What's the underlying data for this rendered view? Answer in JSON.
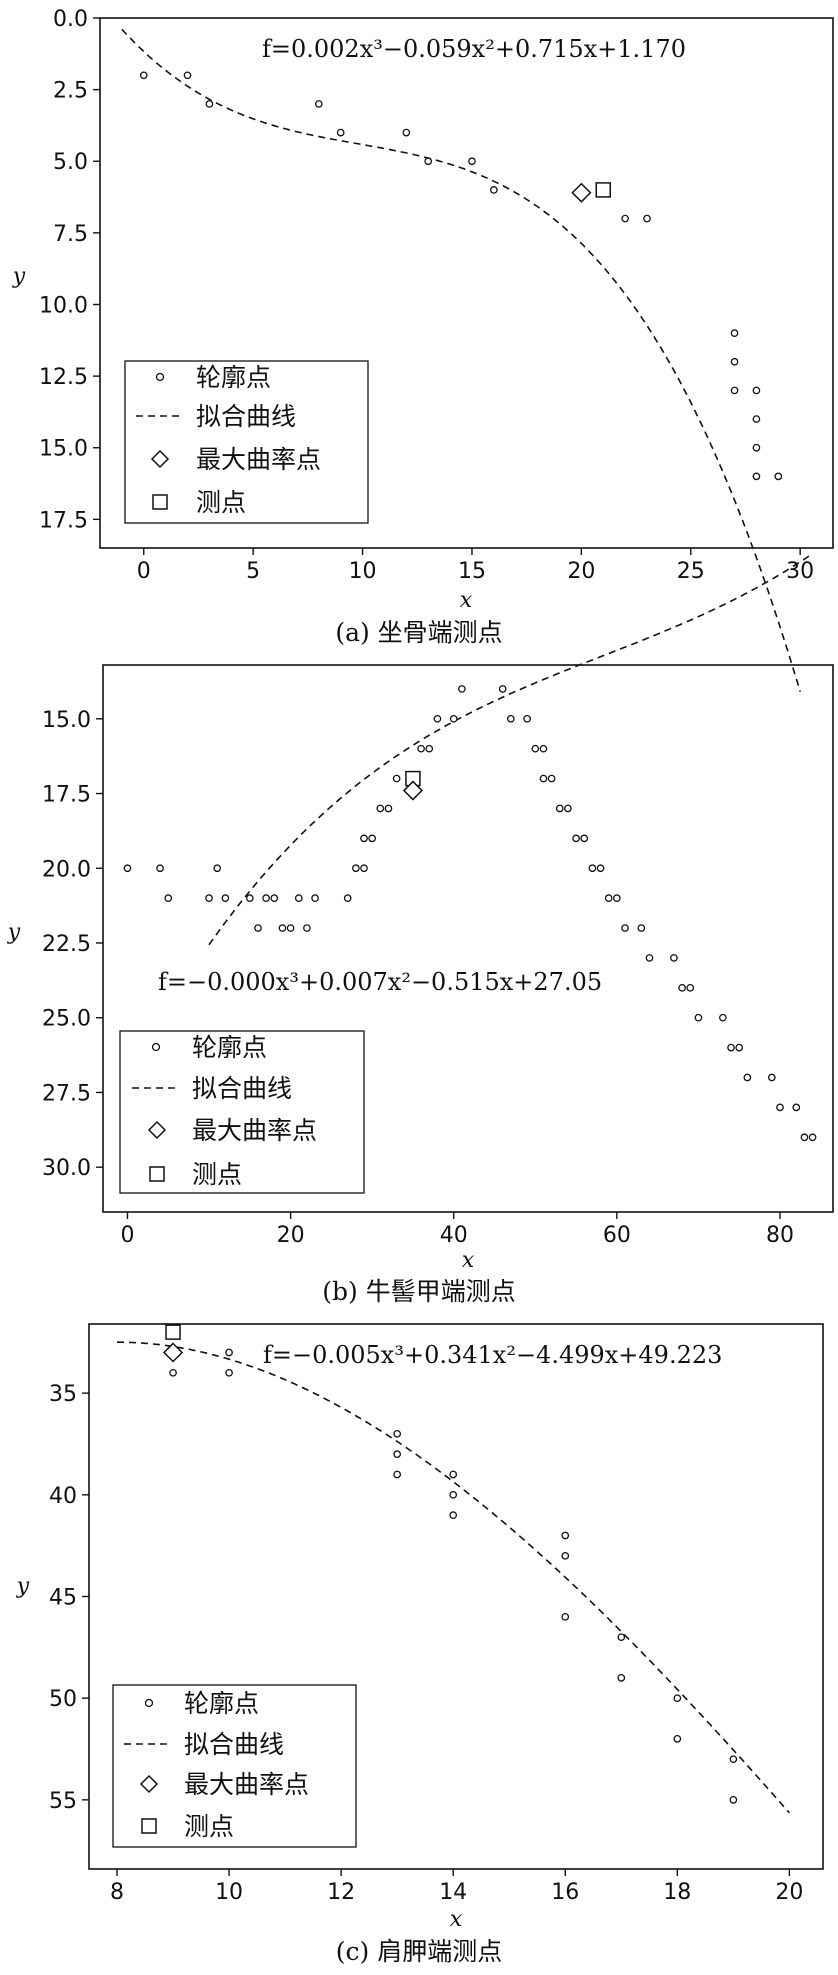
{
  "chart_data": [
    {
      "type": "scatter",
      "caption": "(a) 坐骨端测点",
      "equation": "f=0.002x³−0.059x²+0.715x+1.170",
      "xlabel": "x",
      "ylabel": "y",
      "xlim": [
        -2,
        31.5
      ],
      "ylim": [
        0,
        18.5
      ],
      "y_inverted": true,
      "xticks": [
        0,
        5,
        10,
        15,
        20,
        25,
        30
      ],
      "yticks": [
        "0.0",
        "2.5",
        "5.0",
        "7.5",
        "10.0",
        "12.5",
        "15.0",
        "17.5"
      ],
      "legend_position": "bottom-left",
      "legend": [
        "轮廓点",
        "拟合曲线",
        "最大曲率点",
        "测点"
      ],
      "contour_points": [
        [
          0,
          2
        ],
        [
          2,
          2
        ],
        [
          3,
          3
        ],
        [
          8,
          3
        ],
        [
          9,
          4
        ],
        [
          12,
          4
        ],
        [
          13,
          5
        ],
        [
          15,
          5
        ],
        [
          16,
          6
        ],
        [
          22,
          7
        ],
        [
          23,
          7
        ],
        [
          27,
          11
        ],
        [
          27,
          12
        ],
        [
          27,
          13
        ],
        [
          28,
          13
        ],
        [
          28,
          14
        ],
        [
          28,
          15
        ],
        [
          28,
          16
        ],
        [
          29,
          16
        ]
      ],
      "fit": {
        "coeffs": [
          0.002,
          -0.059,
          0.715,
          1.17
        ],
        "x_range": [
          -1,
          30
        ]
      },
      "max_curvature_point": [
        20,
        6.1
      ],
      "measurement_point": [
        21,
        6
      ]
    },
    {
      "type": "scatter",
      "caption": "(b) 牛髻甲端测点",
      "equation": "f=−0.000x³+0.007x²−0.515x+27.05",
      "xlabel": "x",
      "ylabel": "y",
      "xlim": [
        -3,
        86.5
      ],
      "ylim": [
        13.2,
        31.5
      ],
      "y_inverted": true,
      "xticks": [
        0,
        20,
        40,
        60,
        80
      ],
      "yticks": [
        "15.0",
        "17.5",
        "20.0",
        "22.5",
        "25.0",
        "27.5",
        "30.0"
      ],
      "legend_position": "bottom-left",
      "legend": [
        "轮廓点",
        "拟合曲线",
        "最大曲率点",
        "测点"
      ],
      "contour_points": [
        [
          0,
          20
        ],
        [
          4,
          20
        ],
        [
          5,
          21
        ],
        [
          10,
          21
        ],
        [
          11,
          20
        ],
        [
          12,
          21
        ],
        [
          15,
          21
        ],
        [
          16,
          22
        ],
        [
          17,
          21
        ],
        [
          18,
          21
        ],
        [
          19,
          22
        ],
        [
          20,
          22
        ],
        [
          21,
          21
        ],
        [
          22,
          22
        ],
        [
          23,
          21
        ],
        [
          27,
          21
        ],
        [
          28,
          20
        ],
        [
          29,
          20
        ],
        [
          29,
          19
        ],
        [
          30,
          19
        ],
        [
          31,
          18
        ],
        [
          32,
          18
        ],
        [
          33,
          17
        ],
        [
          35,
          17
        ],
        [
          36,
          16
        ],
        [
          37,
          16
        ],
        [
          38,
          15
        ],
        [
          40,
          15
        ],
        [
          41,
          14
        ],
        [
          46,
          14
        ],
        [
          47,
          15
        ],
        [
          49,
          15
        ],
        [
          50,
          16
        ],
        [
          51,
          16
        ],
        [
          51,
          17
        ],
        [
          52,
          17
        ],
        [
          53,
          18
        ],
        [
          54,
          18
        ],
        [
          55,
          19
        ],
        [
          56,
          19
        ],
        [
          57,
          20
        ],
        [
          58,
          20
        ],
        [
          59,
          21
        ],
        [
          60,
          21
        ],
        [
          61,
          22
        ],
        [
          63,
          22
        ],
        [
          64,
          23
        ],
        [
          67,
          23
        ],
        [
          68,
          24
        ],
        [
          69,
          24
        ],
        [
          70,
          25
        ],
        [
          73,
          25
        ],
        [
          74,
          26
        ],
        [
          75,
          26
        ],
        [
          76,
          27
        ],
        [
          79,
          27
        ],
        [
          80,
          28
        ],
        [
          82,
          28
        ],
        [
          83,
          29
        ],
        [
          84,
          29
        ]
      ],
      "fit": {
        "coeffs": [
          -4e-05,
          0.007,
          -0.515,
          27.05
        ],
        "x_range": [
          10,
          84
        ]
      },
      "max_curvature_point": [
        35,
        17.4
      ],
      "measurement_point": [
        35,
        17
      ]
    },
    {
      "type": "scatter",
      "caption": "(c) 肩胛端测点",
      "equation": "f=−0.005x³+0.341x²−4.499x+49.223",
      "xlabel": "x",
      "ylabel": "y",
      "xlim": [
        7.5,
        20.6
      ],
      "ylim": [
        31.6,
        58.4
      ],
      "y_inverted": true,
      "xticks": [
        8,
        10,
        12,
        14,
        16,
        18,
        20
      ],
      "yticks": [
        "35",
        "40",
        "45",
        "50",
        "55"
      ],
      "legend_position": "bottom-left",
      "legend": [
        "轮廓点",
        "拟合曲线",
        "最大曲率点",
        "测点"
      ],
      "contour_points": [
        [
          9,
          34
        ],
        [
          10,
          33
        ],
        [
          10,
          34
        ],
        [
          13,
          37
        ],
        [
          13,
          38
        ],
        [
          13,
          39
        ],
        [
          14,
          39
        ],
        [
          14,
          40
        ],
        [
          14,
          41
        ],
        [
          16,
          42
        ],
        [
          16,
          43
        ],
        [
          16,
          46
        ],
        [
          17,
          47
        ],
        [
          17,
          49
        ],
        [
          18,
          50
        ],
        [
          18,
          52
        ],
        [
          19,
          53
        ],
        [
          19,
          55
        ]
      ],
      "fit": {
        "coeffs": [
          -0.005,
          0.341,
          -4.499,
          49.223
        ],
        "x_range": [
          8,
          20
        ]
      },
      "max_curvature_point": [
        9,
        33
      ],
      "measurement_point": [
        9,
        32
      ]
    }
  ]
}
